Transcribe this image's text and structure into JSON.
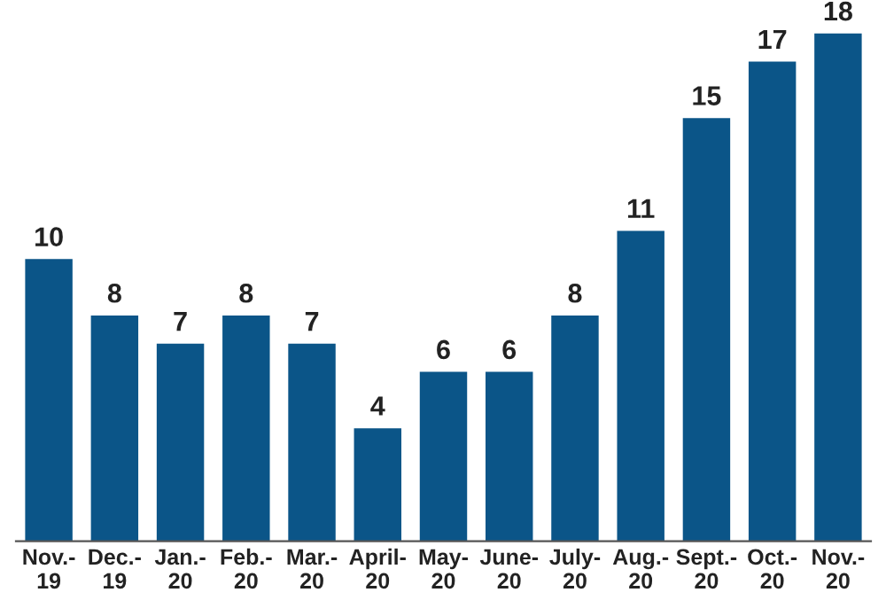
{
  "chart_data": {
    "type": "bar",
    "categories": [
      "Nov.-\n19",
      "Dec.-\n19",
      "Jan.-\n20",
      "Feb.-\n20",
      "Mar.-\n20",
      "April-\n20",
      "May-\n20",
      "June-\n20",
      "July-\n20",
      "Aug.-\n20",
      "Sept.-\n20",
      "Oct.-\n20",
      "Nov.-\n20"
    ],
    "values": [
      10,
      8,
      7,
      8,
      7,
      4,
      6,
      6,
      8,
      11,
      15,
      17,
      18
    ],
    "color": "#0b5588",
    "data_labels": true,
    "grid": false,
    "legend": false
  }
}
